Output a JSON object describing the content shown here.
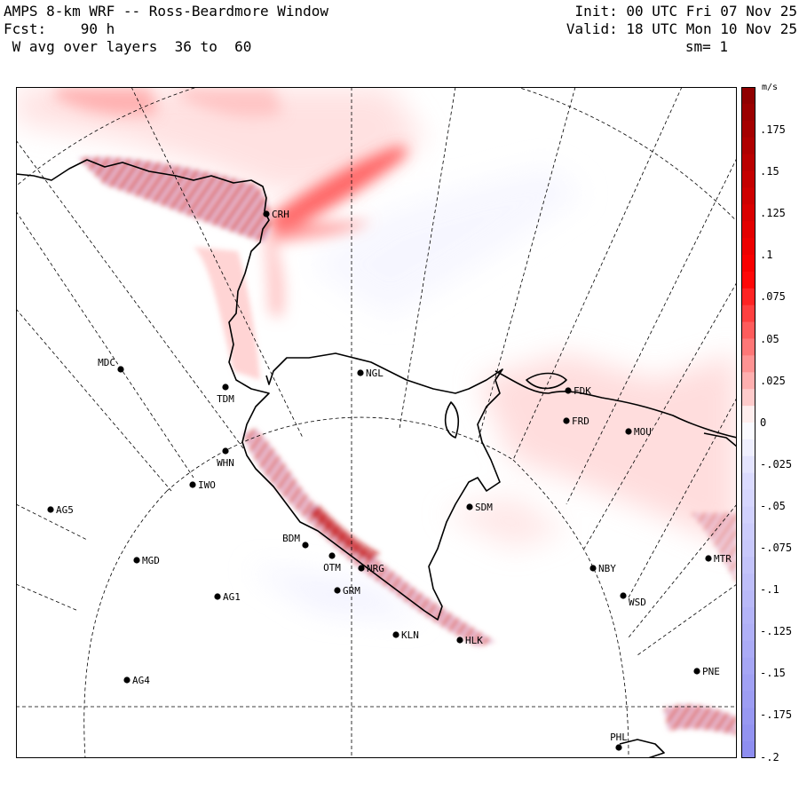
{
  "header": {
    "title": "AMPS 8-km WRF -- Ross-Beardmore Window",
    "forecast": "Fcst:    90 h",
    "variable": " W avg over layers  36 to  60",
    "init": "Init: 00 UTC Fri 07 Nov 25",
    "valid": "Valid: 18 UTC Mon 10 Nov 25",
    "smoothing": "sm= 1"
  },
  "colorbar": {
    "unit": "m/s",
    "labels": [
      ".175",
      ".15",
      ".125",
      ".1",
      ".075",
      ".05",
      ".025",
      "0",
      "-.025",
      "-.05",
      "-.075",
      "-.1",
      "-.125",
      "-.15",
      "-.175",
      "-.2"
    ],
    "colors": {
      "max_positive": "#8b0000",
      "mid_positive": "#ff0000",
      "low_positive": "#ffc8c8",
      "zero": "#ffffff",
      "low_negative": "#dcdcff",
      "max_negative": "#8c8cf0"
    }
  },
  "stations": [
    {
      "id": "CRH",
      "label": "CRH"
    },
    {
      "id": "NGL",
      "label": "NGL"
    },
    {
      "id": "FDK",
      "label": "FDK"
    },
    {
      "id": "FRD",
      "label": "FRD"
    },
    {
      "id": "MOU",
      "label": "MOU"
    },
    {
      "id": "MDC",
      "label": "MDC"
    },
    {
      "id": "TDM",
      "label": "TDM"
    },
    {
      "id": "WHN",
      "label": "WHN"
    },
    {
      "id": "IWO",
      "label": "IWO"
    },
    {
      "id": "AG5",
      "label": "AG5"
    },
    {
      "id": "SDM",
      "label": "SDM"
    },
    {
      "id": "BDM",
      "label": "BDM"
    },
    {
      "id": "MGD",
      "label": "MGD"
    },
    {
      "id": "OTM",
      "label": "OTM"
    },
    {
      "id": "GRM",
      "label": "GRM"
    },
    {
      "id": "NRG",
      "label": "NRG"
    },
    {
      "id": "NBY",
      "label": "NBY"
    },
    {
      "id": "MTR",
      "label": "MTR"
    },
    {
      "id": "AG1",
      "label": "AG1"
    },
    {
      "id": "WSD",
      "label": "WSD"
    },
    {
      "id": "KLN",
      "label": "KLN"
    },
    {
      "id": "HLK",
      "label": "HLK"
    },
    {
      "id": "PNE",
      "label": "PNE"
    },
    {
      "id": "AG4",
      "label": "AG4"
    },
    {
      "id": "PHL",
      "label": "PHL"
    }
  ]
}
